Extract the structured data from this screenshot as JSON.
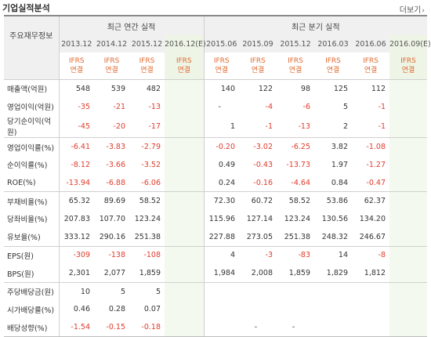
{
  "header": {
    "title": "기업실적분석",
    "more_label": "더보기",
    "more_icon": "chevron-right-icon"
  },
  "table": {
    "row_label_header": "주요재무정보",
    "groups": [
      "최근 연간 실적",
      "최근 분기 실적"
    ],
    "periods": [
      "2013.12",
      "2014.12",
      "2015.12",
      "2016.12(E)",
      "2015.06",
      "2015.09",
      "2015.12",
      "2016.03",
      "2016.06",
      "2016.09(E)"
    ],
    "standard_top": "IFRS",
    "standard_bottom": "연결",
    "rows": [
      {
        "label": "매출액(억원)",
        "values": [
          "548",
          "539",
          "482",
          "",
          "140",
          "122",
          "98",
          "125",
          "112",
          ""
        ]
      },
      {
        "label": "영업이익(억원)",
        "values": [
          "-35",
          "-21",
          "-13",
          "",
          "-",
          "-4",
          "-6",
          "5",
          "-1",
          ""
        ]
      },
      {
        "label": "당기순이익(억원)",
        "values": [
          "-45",
          "-20",
          "-17",
          "",
          "1",
          "-1",
          "-13",
          "2",
          "-1",
          ""
        ]
      },
      {
        "label": "영업이익률(%)",
        "values": [
          "-6.41",
          "-3.83",
          "-2.79",
          "",
          "-0.20",
          "-3.02",
          "-6.25",
          "3.82",
          "-1.08",
          ""
        ]
      },
      {
        "label": "순이익률(%)",
        "values": [
          "-8.12",
          "-3.66",
          "-3.52",
          "",
          "0.49",
          "-0.43",
          "-13.73",
          "1.97",
          "-1.27",
          ""
        ]
      },
      {
        "label": "ROE(%)",
        "values": [
          "-13.94",
          "-6.88",
          "-6.06",
          "",
          "0.24",
          "-0.16",
          "-4.64",
          "0.84",
          "-0.47",
          ""
        ]
      },
      {
        "label": "부채비율(%)",
        "values": [
          "65.32",
          "89.69",
          "58.52",
          "",
          "72.30",
          "60.72",
          "58.52",
          "53.86",
          "62.37",
          ""
        ]
      },
      {
        "label": "당좌비율(%)",
        "values": [
          "207.83",
          "107.70",
          "123.24",
          "",
          "115.96",
          "127.14",
          "123.24",
          "130.56",
          "134.20",
          ""
        ]
      },
      {
        "label": "유보율(%)",
        "values": [
          "333.12",
          "290.16",
          "251.38",
          "",
          "227.88",
          "273.05",
          "251.38",
          "248.32",
          "246.67",
          ""
        ]
      },
      {
        "label": "EPS(원)",
        "values": [
          "-309",
          "-138",
          "-108",
          "",
          "4",
          "-3",
          "-83",
          "14",
          "-8",
          ""
        ]
      },
      {
        "label": "BPS(원)",
        "values": [
          "2,301",
          "2,077",
          "1,859",
          "",
          "1,984",
          "2,008",
          "1,859",
          "1,829",
          "1,812",
          ""
        ]
      },
      {
        "label": "주당배당금(원)",
        "values": [
          "10",
          "5",
          "5",
          "",
          "",
          "",
          "",
          "",
          "",
          ""
        ]
      },
      {
        "label": "시가배당률(%)",
        "values": [
          "0.46",
          "0.28",
          "0.07",
          "",
          "",
          "",
          "",
          "",
          "",
          ""
        ]
      },
      {
        "label": "배당성향(%)",
        "values": [
          "-1.54",
          "-0.15",
          "-0.18",
          "",
          "",
          "-",
          "-",
          "",
          "",
          ""
        ]
      }
    ]
  }
}
